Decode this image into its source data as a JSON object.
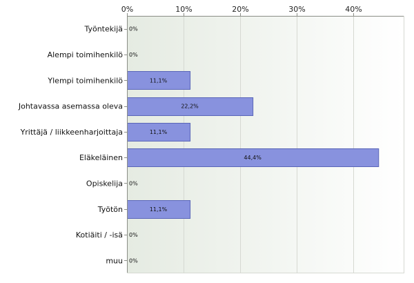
{
  "chart_data": {
    "type": "bar",
    "orientation": "horizontal",
    "categories": [
      "Työntekijä",
      "Alempi toimihenkilö",
      "Ylempi toimihenkilö",
      "Johtavassa asemassa oleva",
      "Yrittäjä / liikkeenharjoittaja",
      "Eläkeläinen",
      "Opiskelija",
      "Työtön",
      "Kotiäiti / -isä",
      "muu"
    ],
    "values": [
      0,
      0,
      11.1,
      22.2,
      11.1,
      44.4,
      0,
      11.1,
      0,
      0
    ],
    "value_labels": [
      "0%",
      "0%",
      "11,1%",
      "22,2%",
      "11,1%",
      "44,4%",
      "0%",
      "11,1%",
      "0%",
      "0%"
    ],
    "xticks": [
      0,
      10,
      20,
      30,
      40
    ],
    "xtick_labels": [
      "0%",
      "10%",
      "20%",
      "30%",
      "40%"
    ],
    "xlim": [
      0,
      49
    ],
    "xaxis_position": "top",
    "grid": true,
    "title": "",
    "xlabel": "",
    "ylabel": "",
    "colors": {
      "bar_fill": "#8892de",
      "bar_stroke": "#5a66b8",
      "gradient_left": "#e5ebe2",
      "gradient_right": "#ffffff",
      "grid": "#d6d9d2",
      "axis": "#8a8d86"
    }
  }
}
